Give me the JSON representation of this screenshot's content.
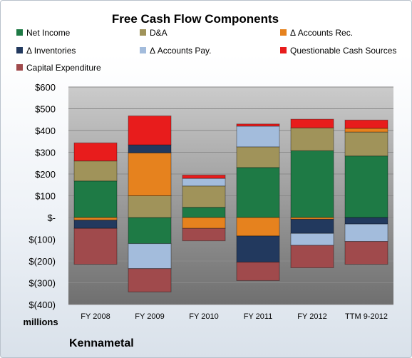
{
  "chart_data": {
    "type": "bar",
    "stacked": true,
    "title": "Free Cash Flow Components",
    "company": "Kennametal",
    "ylabel_unit": "millions",
    "ylim": [
      -400,
      600
    ],
    "y_ticks": [
      600,
      500,
      400,
      300,
      200,
      100,
      0,
      -100,
      -200,
      -300,
      -400
    ],
    "y_tick_labels": [
      "$600",
      "$500",
      "$400",
      "$300",
      "$200",
      "$100",
      "$-",
      "$(100)",
      "$(200)",
      "$(300)",
      "$(400)"
    ],
    "grid": true,
    "legend_position": "top",
    "categories": [
      "FY 2008",
      "FY 2009",
      "FY 2010",
      "FY 2011",
      "FY 2012",
      "TTM 9-2012"
    ],
    "series": [
      {
        "name": "Net Income",
        "color": "#1e7a45",
        "values": [
          168,
          -120,
          47,
          230,
          307,
          283
        ]
      },
      {
        "name": "D&A",
        "color": "#a0935a",
        "values": [
          92,
          100,
          98,
          95,
          105,
          110
        ]
      },
      {
        "name": "Δ Accounts Rec.",
        "color": "#e6821e",
        "values": [
          -12,
          197,
          -50,
          -85,
          -8,
          17
        ]
      },
      {
        "name": "Δ Inventories",
        "color": "#22395e",
        "values": [
          -38,
          37,
          0,
          -120,
          -65,
          -30
        ]
      },
      {
        "name": "Δ Accounts Pay.",
        "color": "#a3bcdc",
        "values": [
          0,
          -115,
          35,
          95,
          -55,
          -80
        ]
      },
      {
        "name": "Questionable Cash Sources",
        "color": "#e81c1c",
        "values": [
          83,
          133,
          15,
          10,
          40,
          38
        ]
      },
      {
        "name": "Capital Expenditure",
        "color": "#a04a4c",
        "values": [
          -165,
          -107,
          -57,
          -85,
          -103,
          -105
        ]
      }
    ]
  }
}
